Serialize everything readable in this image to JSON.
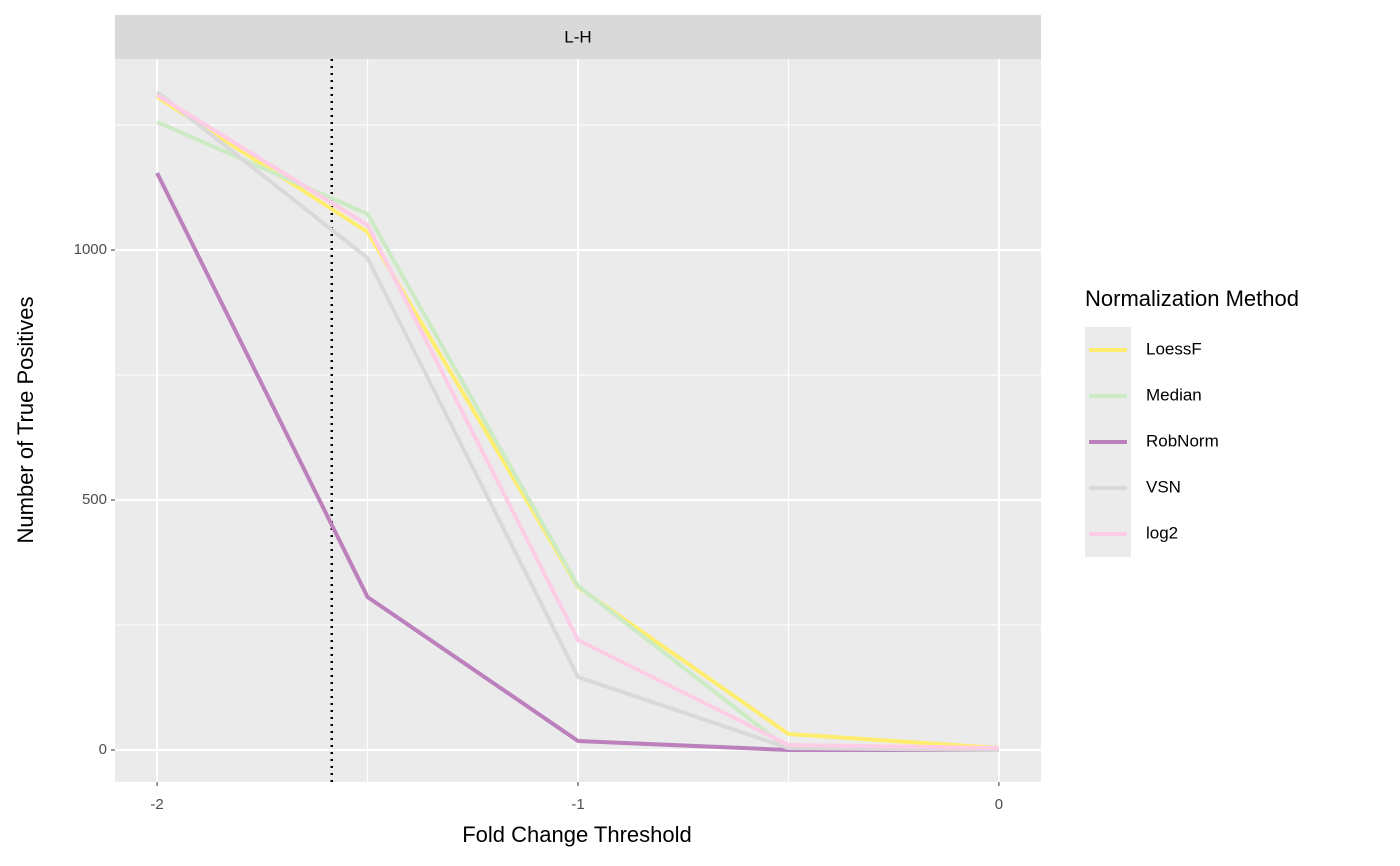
{
  "chart_data": {
    "type": "line",
    "strip_title": "L-H",
    "x_label": "Fold Change Threshold",
    "y_label": "Number of True Positives",
    "legend_title": "Normalization Method",
    "legend_position": "right",
    "x": [
      -2,
      -1.5,
      -1,
      -0.5,
      0
    ],
    "series": [
      {
        "name": "LoessF",
        "color": "#FFED6F",
        "values": [
          1306,
          1036,
          326,
          32,
          4
        ]
      },
      {
        "name": "Median",
        "color": "#CCEBC5",
        "values": [
          1256,
          1072,
          328,
          2,
          2
        ]
      },
      {
        "name": "RobNorm",
        "color": "#BC80BD",
        "values": [
          1154,
          306,
          18,
          0,
          0
        ]
      },
      {
        "name": "VSN",
        "color": "#D9D9D9",
        "values": [
          1316,
          984,
          146,
          4,
          0
        ]
      },
      {
        "name": "log2",
        "color": "#FCCDE5",
        "values": [
          1310,
          1050,
          220,
          10,
          4
        ]
      }
    ],
    "xlim": [
      -2.1,
      0.1
    ],
    "ylim": [
      -64,
      1382
    ],
    "xticks": [
      -2,
      -1,
      0
    ],
    "yticks": [
      0,
      500,
      1000
    ],
    "x_minor_grid": [
      -1.5,
      -0.5
    ],
    "y_minor_grid": [
      250,
      750,
      1250
    ],
    "grid": true,
    "vline": -1.585,
    "vline_style": "dotted"
  }
}
